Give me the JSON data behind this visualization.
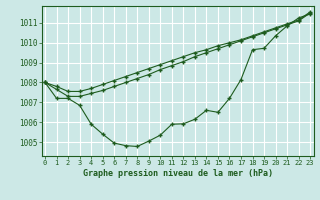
{
  "title": "Graphe pression niveau de la mer (hPa)",
  "bg_color": "#cce8e6",
  "grid_color": "#ffffff",
  "line_color": "#1e5c1e",
  "xlim": [
    -0.3,
    23.3
  ],
  "ylim": [
    1004.3,
    1011.85
  ],
  "yticks": [
    1005,
    1006,
    1007,
    1008,
    1009,
    1010,
    1011
  ],
  "xticks": [
    0,
    1,
    2,
    3,
    4,
    5,
    6,
    7,
    8,
    9,
    10,
    11,
    12,
    13,
    14,
    15,
    16,
    17,
    18,
    19,
    20,
    21,
    22,
    23
  ],
  "line1": [
    1008.0,
    1007.2,
    1007.2,
    1006.85,
    1005.9,
    1005.4,
    1004.95,
    1004.82,
    1004.78,
    1005.05,
    1005.35,
    1005.9,
    1005.92,
    1006.15,
    1006.6,
    1006.5,
    1007.2,
    1008.15,
    1009.65,
    1009.72,
    1010.35,
    1010.85,
    1011.25,
    1011.45
  ],
  "line2": [
    1008.0,
    1007.65,
    1007.3,
    1007.3,
    1007.45,
    1007.6,
    1007.8,
    1008.0,
    1008.2,
    1008.4,
    1008.65,
    1008.85,
    1009.05,
    1009.3,
    1009.5,
    1009.7,
    1009.9,
    1010.1,
    1010.3,
    1010.5,
    1010.7,
    1010.9,
    1011.1,
    1011.5
  ],
  "line3": [
    1008.0,
    1007.8,
    1007.55,
    1007.55,
    1007.7,
    1007.9,
    1008.1,
    1008.3,
    1008.5,
    1008.7,
    1008.9,
    1009.1,
    1009.3,
    1009.5,
    1009.65,
    1009.85,
    1010.0,
    1010.15,
    1010.35,
    1010.55,
    1010.75,
    1010.95,
    1011.15,
    1011.55
  ]
}
